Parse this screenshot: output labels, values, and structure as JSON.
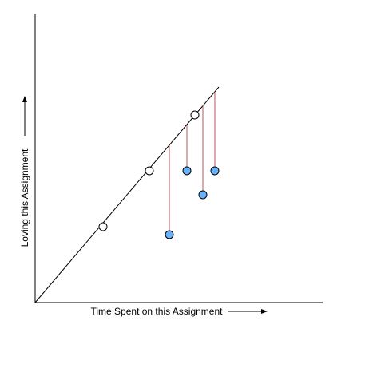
{
  "chart_data": {
    "type": "scatter",
    "xlabel": "Time Spent on this Assignment",
    "ylabel": "Loving this Assignment",
    "xlim": [
      0,
      360
    ],
    "ylim": [
      0,
      360
    ],
    "grid": false,
    "regression_line": {
      "x": [
        0,
        230
      ],
      "y": [
        0,
        270
      ]
    },
    "series": [
      {
        "marker": "open-circle",
        "points": [
          {
            "x": 85,
            "y": 95
          },
          {
            "x": 143,
            "y": 165
          },
          {
            "x": 200,
            "y": 235
          }
        ]
      },
      {
        "marker": "filled-circle",
        "points": [
          {
            "x": 168,
            "y": 85
          },
          {
            "x": 190,
            "y": 165
          },
          {
            "x": 210,
            "y": 135
          },
          {
            "x": 225,
            "y": 165
          }
        ]
      }
    ],
    "residuals": [
      {
        "x": 168,
        "y_point": 85,
        "y_line": 197
      },
      {
        "x": 190,
        "y_point": 165,
        "y_line": 223
      },
      {
        "x": 210,
        "y_point": 135,
        "y_line": 247
      },
      {
        "x": 225,
        "y_point": 165,
        "y_line": 264
      }
    ]
  },
  "colors": {
    "axis": "#000000",
    "regression_line": "#000000",
    "residual": "#b85450",
    "open_marker_fill": "#ffffff",
    "filled_marker_fill": "#66b2ff",
    "marker_stroke": "#000000"
  }
}
